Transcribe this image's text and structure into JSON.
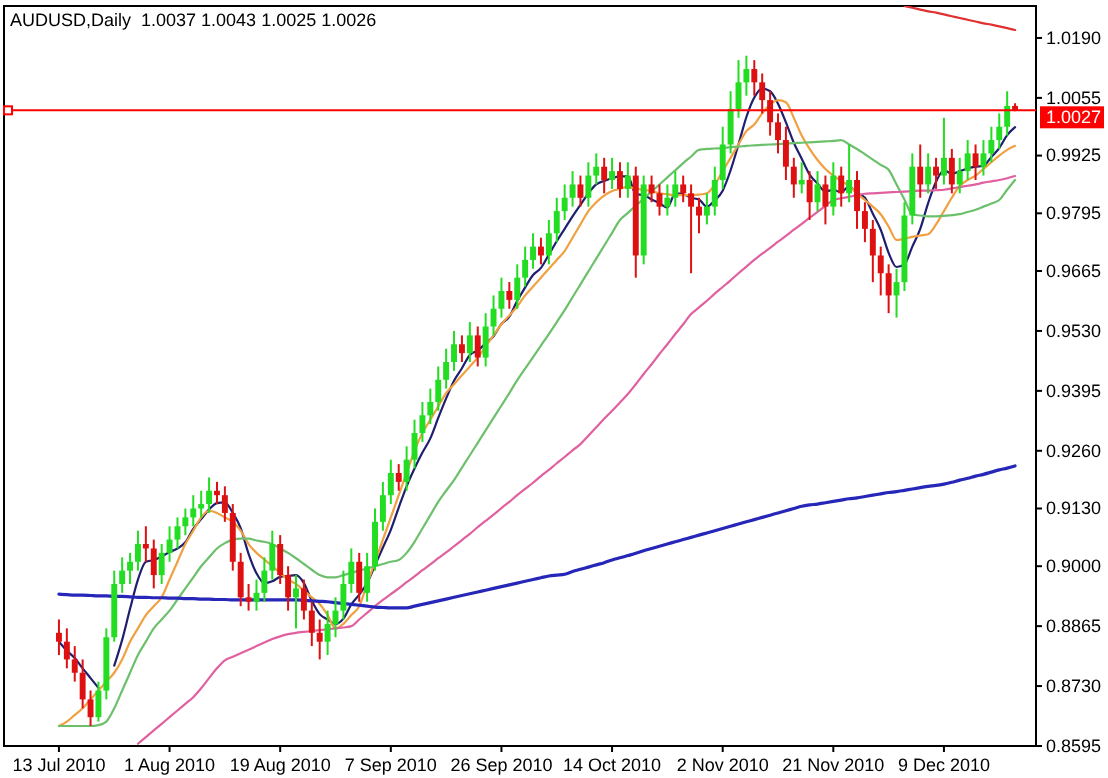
{
  "chart_data": {
    "type": "candlestick",
    "title": "AUDUSD,Daily  1.0037 1.0043 1.0025 1.0026",
    "categories": [
      "13 Jul 2010",
      null,
      null,
      null,
      null,
      null,
      null,
      null,
      null,
      null,
      null,
      null,
      null,
      null,
      "1 Aug 2010",
      null,
      null,
      null,
      null,
      null,
      null,
      null,
      null,
      null,
      null,
      null,
      null,
      null,
      "19 Aug 2010",
      null,
      null,
      null,
      null,
      null,
      null,
      null,
      null,
      null,
      null,
      null,
      null,
      null,
      "7 Sep 2010",
      null,
      null,
      null,
      null,
      null,
      null,
      null,
      null,
      null,
      null,
      null,
      null,
      null,
      "26 Sep 2010",
      null,
      null,
      null,
      null,
      null,
      null,
      null,
      null,
      null,
      null,
      null,
      null,
      null,
      "14 Oct 2010",
      null,
      null,
      null,
      null,
      null,
      null,
      null,
      null,
      null,
      null,
      null,
      null,
      null,
      "2 Nov 2010",
      null,
      null,
      null,
      null,
      null,
      null,
      null,
      null,
      null,
      null,
      null,
      null,
      null,
      "21 Nov 2010",
      null,
      null,
      null,
      null,
      null,
      null,
      null,
      null,
      null,
      null,
      null,
      null,
      null,
      "9 Dec 2010",
      null,
      null,
      null,
      null,
      null,
      null,
      null,
      null,
      null
    ],
    "ohlc": [
      [
        0.885,
        0.888,
        0.88,
        0.883
      ],
      [
        0.883,
        0.886,
        0.877,
        0.879
      ],
      [
        0.879,
        0.882,
        0.874,
        0.876
      ],
      [
        0.876,
        0.879,
        0.868,
        0.87
      ],
      [
        0.87,
        0.872,
        0.864,
        0.866
      ],
      [
        0.866,
        0.874,
        0.865,
        0.872
      ],
      [
        0.872,
        0.886,
        0.87,
        0.884
      ],
      [
        0.884,
        0.899,
        0.883,
        0.896
      ],
      [
        0.896,
        0.902,
        0.894,
        0.899
      ],
      [
        0.899,
        0.903,
        0.896,
        0.901
      ],
      [
        0.901,
        0.908,
        0.899,
        0.905
      ],
      [
        0.905,
        0.909,
        0.901,
        0.904
      ],
      [
        0.904,
        0.906,
        0.895,
        0.898
      ],
      [
        0.898,
        0.905,
        0.896,
        0.903
      ],
      [
        0.903,
        0.909,
        0.901,
        0.906
      ],
      [
        0.906,
        0.911,
        0.904,
        0.909
      ],
      [
        0.909,
        0.913,
        0.907,
        0.911
      ],
      [
        0.911,
        0.916,
        0.909,
        0.913
      ],
      [
        0.913,
        0.917,
        0.911,
        0.914
      ],
      [
        0.914,
        0.92,
        0.912,
        0.917
      ],
      [
        0.917,
        0.919,
        0.914,
        0.916
      ],
      [
        0.916,
        0.918,
        0.91,
        0.912
      ],
      [
        0.912,
        0.914,
        0.899,
        0.901
      ],
      [
        0.901,
        0.903,
        0.891,
        0.893
      ],
      [
        0.893,
        0.896,
        0.89,
        0.892
      ],
      [
        0.892,
        0.897,
        0.89,
        0.894
      ],
      [
        0.894,
        0.902,
        0.892,
        0.899
      ],
      [
        0.899,
        0.908,
        0.897,
        0.905
      ],
      [
        0.905,
        0.907,
        0.896,
        0.898
      ],
      [
        0.898,
        0.9,
        0.89,
        0.893
      ],
      [
        0.893,
        0.898,
        0.886,
        0.895
      ],
      [
        0.895,
        0.897,
        0.888,
        0.89
      ],
      [
        0.89,
        0.892,
        0.882,
        0.885
      ],
      [
        0.885,
        0.888,
        0.879,
        0.883
      ],
      [
        0.883,
        0.89,
        0.88,
        0.887
      ],
      [
        0.887,
        0.893,
        0.884,
        0.89
      ],
      [
        0.89,
        0.899,
        0.888,
        0.896
      ],
      [
        0.896,
        0.904,
        0.894,
        0.901
      ],
      [
        0.901,
        0.903,
        0.892,
        0.894
      ],
      [
        0.894,
        0.903,
        0.892,
        0.9
      ],
      [
        0.9,
        0.913,
        0.899,
        0.91
      ],
      [
        0.91,
        0.919,
        0.908,
        0.916
      ],
      [
        0.916,
        0.924,
        0.914,
        0.921
      ],
      [
        0.921,
        0.923,
        0.917,
        0.919
      ],
      [
        0.919,
        0.927,
        0.917,
        0.924
      ],
      [
        0.924,
        0.933,
        0.922,
        0.93
      ],
      [
        0.93,
        0.937,
        0.928,
        0.934
      ],
      [
        0.934,
        0.94,
        0.932,
        0.937
      ],
      [
        0.937,
        0.945,
        0.935,
        0.942
      ],
      [
        0.942,
        0.949,
        0.94,
        0.946
      ],
      [
        0.946,
        0.953,
        0.944,
        0.95
      ],
      [
        0.95,
        0.952,
        0.946,
        0.948
      ],
      [
        0.948,
        0.955,
        0.946,
        0.952
      ],
      [
        0.952,
        0.954,
        0.945,
        0.947
      ],
      [
        0.947,
        0.957,
        0.945,
        0.954
      ],
      [
        0.954,
        0.961,
        0.952,
        0.958
      ],
      [
        0.958,
        0.965,
        0.956,
        0.962
      ],
      [
        0.962,
        0.964,
        0.958,
        0.96
      ],
      [
        0.96,
        0.968,
        0.958,
        0.965
      ],
      [
        0.965,
        0.972,
        0.963,
        0.969
      ],
      [
        0.969,
        0.975,
        0.967,
        0.972
      ],
      [
        0.972,
        0.974,
        0.968,
        0.97
      ],
      [
        0.97,
        0.978,
        0.968,
        0.975
      ],
      [
        0.975,
        0.983,
        0.973,
        0.98
      ],
      [
        0.98,
        0.986,
        0.978,
        0.983
      ],
      [
        0.983,
        0.989,
        0.981,
        0.986
      ],
      [
        0.986,
        0.988,
        0.981,
        0.983
      ],
      [
        0.983,
        0.991,
        0.981,
        0.988
      ],
      [
        0.988,
        0.993,
        0.986,
        0.99
      ],
      [
        0.99,
        0.992,
        0.984,
        0.987
      ],
      [
        0.987,
        0.992,
        0.985,
        0.989
      ],
      [
        0.989,
        0.991,
        0.983,
        0.985
      ],
      [
        0.985,
        0.991,
        0.983,
        0.988
      ],
      [
        0.988,
        0.99,
        0.965,
        0.97
      ],
      [
        0.97,
        0.988,
        0.968,
        0.986
      ],
      [
        0.986,
        0.988,
        0.982,
        0.984
      ],
      [
        0.984,
        0.986,
        0.979,
        0.981
      ],
      [
        0.981,
        0.986,
        0.979,
        0.983
      ],
      [
        0.983,
        0.989,
        0.981,
        0.986
      ],
      [
        0.986,
        0.988,
        0.982,
        0.984
      ],
      [
        0.984,
        0.986,
        0.966,
        0.981
      ],
      [
        0.981,
        0.983,
        0.975,
        0.979
      ],
      [
        0.979,
        0.984,
        0.977,
        0.981
      ],
      [
        0.981,
        0.99,
        0.979,
        0.987
      ],
      [
        0.987,
        0.999,
        0.985,
        0.995
      ],
      [
        0.995,
        1.007,
        0.993,
        1.003
      ],
      [
        1.003,
        1.014,
        1.001,
        1.009
      ],
      [
        1.009,
        1.015,
        1.006,
        1.012
      ],
      [
        1.012,
        1.014,
        1.006,
        1.009
      ],
      [
        1.009,
        1.011,
        1.002,
        1.005
      ],
      [
        1.005,
        1.007,
        0.997,
        1.0
      ],
      [
        1.0,
        1.002,
        0.993,
        0.996
      ],
      [
        0.996,
        0.999,
        0.987,
        0.99
      ],
      [
        0.99,
        0.992,
        0.983,
        0.986
      ],
      [
        0.986,
        0.991,
        0.984,
        0.987
      ],
      [
        0.987,
        0.989,
        0.978,
        0.982
      ],
      [
        0.982,
        0.989,
        0.98,
        0.986
      ],
      [
        0.986,
        0.988,
        0.977,
        0.981
      ],
      [
        0.981,
        0.991,
        0.979,
        0.988
      ],
      [
        0.988,
        0.99,
        0.981,
        0.984
      ],
      [
        0.984,
        0.995,
        0.982,
        0.987
      ],
      [
        0.987,
        0.989,
        0.976,
        0.98
      ],
      [
        0.98,
        0.982,
        0.973,
        0.976
      ],
      [
        0.976,
        0.978,
        0.964,
        0.97
      ],
      [
        0.97,
        0.972,
        0.961,
        0.966
      ],
      [
        0.966,
        0.968,
        0.957,
        0.961
      ],
      [
        0.961,
        0.967,
        0.956,
        0.964
      ],
      [
        0.964,
        0.982,
        0.962,
        0.979
      ],
      [
        0.979,
        0.993,
        0.977,
        0.99
      ],
      [
        0.99,
        0.995,
        0.983,
        0.986
      ],
      [
        0.986,
        0.993,
        0.984,
        0.99
      ],
      [
        0.99,
        0.992,
        0.985,
        0.988
      ],
      [
        0.988,
        1.001,
        0.986,
        0.992
      ],
      [
        0.992,
        0.994,
        0.984,
        0.986
      ],
      [
        0.986,
        0.992,
        0.984,
        0.989
      ],
      [
        0.989,
        0.996,
        0.987,
        0.993
      ],
      [
        0.993,
        0.995,
        0.987,
        0.99
      ],
      [
        0.99,
        0.996,
        0.988,
        0.993
      ],
      [
        0.993,
        0.999,
        0.991,
        0.996
      ],
      [
        0.996,
        1.002,
        0.994,
        0.999
      ],
      [
        0.999,
        1.007,
        0.997,
        1.0037
      ],
      [
        1.0037,
        1.0043,
        1.0025,
        1.0026
      ]
    ],
    "series": [
      {
        "type": "line",
        "color": "#1f1f70",
        "values": [
          0.883,
          0.881,
          0.8793,
          0.877,
          0.8748,
          0.8726,
          null,
          0.8776,
          0.8834,
          0.8904,
          0.897,
          0.901,
          0.9014,
          0.9022,
          0.9032,
          0.904,
          0.9054,
          0.9084,
          0.9106,
          0.9128,
          0.9142,
          0.9144,
          0.912,
          0.9086,
          0.9028,
          0.8984,
          0.8962,
          0.8966,
          0.8976,
          0.8978,
          0.898,
          0.8962,
          0.8922,
          0.8892,
          0.888,
          0.887,
          0.8882,
          0.8914,
          0.8936,
          0.8962,
          0.9002,
          0.9042,
          0.9082,
          0.9132,
          0.918,
          0.922,
          0.9256,
          0.9288,
          0.9334,
          0.9378,
          0.9418,
          0.9446,
          0.9476,
          0.9486,
          0.9502,
          0.9518,
          0.9546,
          0.9562,
          0.9598,
          0.9628,
          0.9656,
          0.9672,
          0.9702,
          0.9732,
          0.976,
          0.9788,
          0.9814,
          0.984,
          0.986,
          0.9868,
          0.9874,
          0.9878,
          0.9878,
          0.9838,
          0.9836,
          0.9826,
          0.9818,
          0.9808,
          0.984,
          0.9838,
          0.983,
          0.9826,
          0.981,
          0.9824,
          0.9846,
          0.9892,
          0.995,
          1.0012,
          1.0056,
          1.0076,
          1.007,
          1.0042,
          1.0,
          0.9954,
          0.9918,
          0.9882,
          0.9862,
          0.9844,
          0.9848,
          0.9842,
          0.9856,
          0.984,
          0.983,
          0.9794,
          0.9758,
          0.9706,
          0.9674,
          0.968,
          0.972,
          0.976,
          0.9818,
          0.9866,
          0.9892,
          0.9884,
          0.989,
          0.9896,
          0.99,
          0.9902,
          0.9922,
          0.9942,
          0.9971,
          0.9989
        ]
      },
      {
        "type": "line",
        "color": "#f0a040",
        "values": [
          0.864,
          0.865,
          0.8665,
          0.868,
          0.87,
          0.872,
          0.874,
          0.876,
          0.879,
          0.883,
          0.886,
          0.889,
          0.891,
          0.893,
          0.897,
          0.901,
          0.905,
          0.908,
          0.911,
          0.9125,
          0.912,
          0.911,
          0.91,
          0.908,
          0.905,
          0.903,
          0.9015,
          0.9,
          0.8985,
          0.897,
          0.896,
          0.8945,
          0.893,
          0.8915,
          0.889,
          0.886,
          0.887,
          0.889,
          0.891,
          0.896,
          0.901,
          0.906,
          0.911,
          0.916,
          0.921,
          0.926,
          0.93,
          0.933,
          0.936,
          0.939,
          0.941,
          0.943,
          0.945,
          0.947,
          0.9495,
          0.952,
          0.9545,
          0.9565,
          0.9585,
          0.961,
          0.963,
          0.965,
          0.967,
          0.969,
          0.971,
          0.974,
          0.977,
          0.98,
          0.982,
          0.9835,
          0.9845,
          0.985,
          0.9855,
          0.985,
          0.9848,
          0.9845,
          0.984,
          0.9838,
          0.9836,
          0.9836,
          0.9836,
          0.9837,
          0.984,
          0.986,
          0.989,
          0.992,
          0.995,
          0.998,
          0.9995,
          1.002,
          1.004,
          1.005,
          1.0045,
          1.001,
          0.997,
          0.994,
          0.9915,
          0.9895,
          0.988,
          0.9868,
          0.9857,
          0.984,
          0.9825,
          0.981,
          0.9793,
          0.9765,
          0.9735,
          0.9738,
          0.9742,
          0.9745,
          0.9748,
          0.977,
          0.98,
          0.983,
          0.9857,
          0.987,
          0.988,
          0.9895,
          0.991,
          0.9925,
          0.9938,
          0.9947
        ]
      },
      {
        "type": "line",
        "color": "#6cc06c",
        "values": [
          0.864,
          0.864,
          0.864,
          0.864,
          0.864,
          0.8642,
          0.865,
          0.868,
          0.872,
          0.876,
          0.88,
          0.883,
          0.886,
          0.888,
          0.89,
          0.8925,
          0.895,
          0.8975,
          0.9,
          0.902,
          0.904,
          0.9052,
          0.906,
          0.9062,
          0.9062,
          0.9058,
          0.9055,
          0.905,
          0.904,
          0.903,
          0.9018,
          0.9005,
          0.8992,
          0.898,
          0.8975,
          0.8975,
          0.898,
          0.8985,
          0.899,
          0.8995,
          0.9,
          0.9005,
          0.901,
          0.9014,
          0.903,
          0.9055,
          0.9085,
          0.9115,
          0.9145,
          0.917,
          0.9194,
          0.9222,
          0.925,
          0.9278,
          0.9306,
          0.9334,
          0.9362,
          0.939,
          0.9419,
          0.9445,
          0.9471,
          0.9497,
          0.9523,
          0.955,
          0.9577,
          0.9606,
          0.9635,
          0.9664,
          0.9693,
          0.9722,
          0.9751,
          0.978,
          0.9796,
          0.9812,
          0.9828,
          0.9844,
          0.986,
          0.9876,
          0.9892,
          0.9908,
          0.9923,
          0.9938,
          0.994,
          0.9941,
          0.9942,
          0.9944,
          0.9945,
          0.9947,
          0.9948,
          0.9949,
          0.995,
          0.9951,
          0.9952,
          0.9953,
          0.9954,
          0.9955,
          0.9956,
          0.9957,
          0.9958,
          0.996,
          0.995,
          0.994,
          0.9928,
          0.9916,
          0.9904,
          0.9893,
          0.986,
          0.9826,
          0.9793,
          0.979,
          0.9788,
          0.9788,
          0.9789,
          0.9791,
          0.9793,
          0.9798,
          0.9803,
          0.981,
          0.9817,
          0.9825,
          0.9848,
          0.987
        ]
      },
      {
        "type": "line",
        "color": "#e060a0",
        "values": [
          null,
          null,
          null,
          null,
          null,
          null,
          null,
          null,
          null,
          null,
          0.86,
          0.8615,
          0.863,
          0.8645,
          0.866,
          0.8675,
          0.869,
          0.8705,
          0.8725,
          0.8748,
          0.877,
          0.8788,
          0.8796,
          0.8804,
          0.8812,
          0.882,
          0.8828,
          0.8836,
          0.8842,
          0.8847,
          0.885,
          0.8852,
          0.8854,
          0.8856,
          0.8858,
          0.886,
          0.8862,
          0.8865,
          0.888,
          0.8895,
          0.891,
          0.8924,
          0.8937,
          0.895,
          0.8964,
          0.8977,
          0.8991,
          0.9004,
          0.9018,
          0.9031,
          0.9045,
          0.9059,
          0.9073,
          0.9088,
          0.9102,
          0.9116,
          0.9131,
          0.9145,
          0.916,
          0.9174,
          0.9188,
          0.9203,
          0.9217,
          0.9232,
          0.9246,
          0.9261,
          0.9275,
          0.9294,
          0.9313,
          0.9332,
          0.935,
          0.9369,
          0.9388,
          0.941,
          0.9433,
          0.9455,
          0.9478,
          0.95,
          0.9523,
          0.9545,
          0.9568,
          0.9583,
          0.9598,
          0.9614,
          0.9629,
          0.9644,
          0.966,
          0.9675,
          0.969,
          0.9704,
          0.9717,
          0.9731,
          0.9744,
          0.9758,
          0.9771,
          0.9785,
          0.9798,
          0.9812,
          0.9825,
          0.9829,
          0.9832,
          0.9836,
          0.9839,
          0.984,
          0.9841,
          0.9842,
          0.9843,
          0.9844,
          0.9845,
          0.9846,
          0.9846,
          0.9847,
          0.9848,
          0.9851,
          0.9854,
          0.9857,
          0.986,
          0.9864,
          0.9867,
          0.987,
          0.9874,
          0.9879
        ]
      },
      {
        "type": "line",
        "color": "#2626b8",
        "values": [
          0.8937,
          0.8936,
          0.8935,
          0.8935,
          0.8934,
          0.8933,
          0.8933,
          0.8932,
          0.8932,
          0.8931,
          0.893,
          0.893,
          0.8929,
          0.8929,
          0.8928,
          0.8928,
          0.8927,
          0.8927,
          0.8926,
          0.8926,
          0.8925,
          0.8925,
          0.8924,
          0.8924,
          0.8924,
          0.8924,
          0.8924,
          0.8924,
          0.8924,
          0.8924,
          0.8924,
          0.8923,
          0.8922,
          0.8921,
          0.892,
          0.8918,
          0.8916,
          0.8914,
          0.8912,
          0.891,
          0.8908,
          0.8907,
          0.8906,
          0.8906,
          0.8906,
          0.891,
          0.8914,
          0.8918,
          0.8922,
          0.8926,
          0.893,
          0.8934,
          0.8938,
          0.8942,
          0.8946,
          0.895,
          0.8954,
          0.8958,
          0.8962,
          0.8966,
          0.897,
          0.8974,
          0.8978,
          0.898,
          0.8982,
          0.8988,
          0.8993,
          0.8998,
          0.9003,
          0.9008,
          0.9014,
          0.9019,
          0.9024,
          0.9029,
          0.9035,
          0.904,
          0.9045,
          0.905,
          0.9055,
          0.906,
          0.9065,
          0.907,
          0.9075,
          0.908,
          0.9085,
          0.909,
          0.9095,
          0.91,
          0.9105,
          0.911,
          0.9115,
          0.912,
          0.9125,
          0.913,
          0.9135,
          0.9138,
          0.914,
          0.9143,
          0.9146,
          0.9149,
          0.9152,
          0.9154,
          0.9157,
          0.916,
          0.9163,
          0.9166,
          0.9168,
          0.9171,
          0.9174,
          0.9177,
          0.918,
          0.9182,
          0.9185,
          0.9189,
          0.9194,
          0.9198,
          0.9203,
          0.9207,
          0.9212,
          0.9217,
          0.9221,
          0.9226
        ]
      },
      {
        "type": "line",
        "color": "#e03030",
        "values": [
          null,
          null,
          null,
          null,
          null,
          null,
          null,
          null,
          null,
          null,
          null,
          null,
          null,
          null,
          null,
          null,
          null,
          null,
          null,
          null,
          null,
          null,
          null,
          null,
          null,
          null,
          null,
          null,
          null,
          null,
          null,
          null,
          null,
          null,
          null,
          null,
          null,
          null,
          null,
          null,
          null,
          null,
          null,
          null,
          null,
          null,
          null,
          null,
          null,
          null,
          null,
          null,
          null,
          null,
          null,
          null,
          null,
          null,
          null,
          null,
          null,
          null,
          null,
          null,
          null,
          null,
          null,
          null,
          null,
          null,
          null,
          null,
          null,
          null,
          null,
          null,
          null,
          null,
          null,
          null,
          null,
          null,
          null,
          null,
          null,
          null,
          null,
          null,
          null,
          null,
          null,
          null,
          null,
          null,
          null,
          null,
          null,
          null,
          null,
          null,
          null,
          null,
          null,
          null,
          null,
          null,
          null,
          1.0262,
          1.0258,
          1.0254,
          1.025,
          1.0247,
          1.0243,
          1.0239,
          1.0235,
          1.0231,
          1.0227,
          1.0223,
          1.022,
          1.0216,
          1.0212,
          1.0208
        ]
      }
    ],
    "ylim": [
      0.8595,
      1.0262
    ],
    "yticks": [
      {
        "value": 1.019,
        "label": "1.0190"
      },
      {
        "value": 1.0055,
        "label": "1.0055"
      },
      {
        "value": 0.9925,
        "label": "0.9925"
      },
      {
        "value": 0.9795,
        "label": "0.9795"
      },
      {
        "value": 0.9665,
        "label": "0.9665"
      },
      {
        "value": 0.953,
        "label": "0.9530"
      },
      {
        "value": 0.9395,
        "label": "0.9395"
      },
      {
        "value": 0.926,
        "label": "0.9260"
      },
      {
        "value": 0.913,
        "label": "0.9130"
      },
      {
        "value": 0.9,
        "label": "0.9000"
      },
      {
        "value": 0.8865,
        "label": "0.8865"
      },
      {
        "value": 0.873,
        "label": "0.8730"
      },
      {
        "value": 0.8595,
        "label": "0.8595"
      }
    ],
    "ref_lines": [
      {
        "axis": "y",
        "value": 1.0027,
        "label": "1.0027",
        "color": "#ff0000"
      }
    ],
    "grid": false
  }
}
